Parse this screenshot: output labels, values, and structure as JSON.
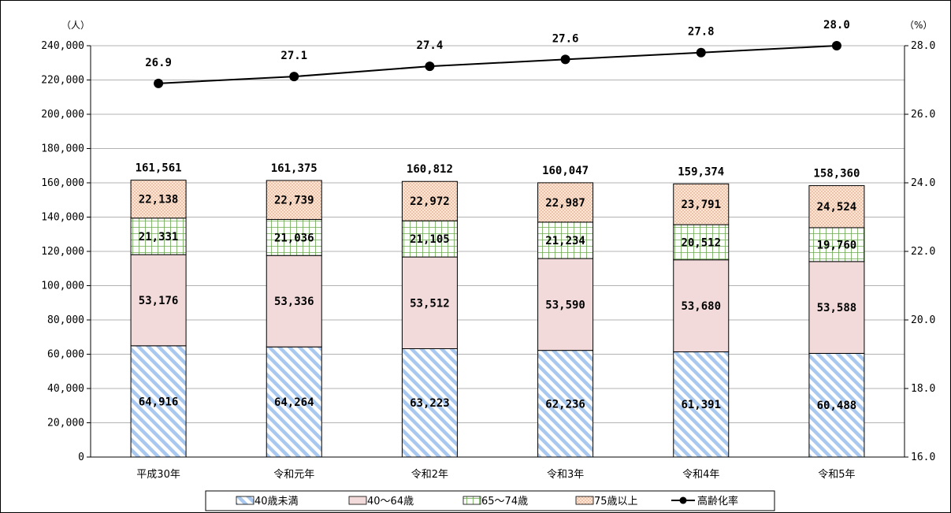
{
  "chart_data": {
    "type": "bar",
    "stacked": true,
    "categories": [
      "平成30年",
      "令和元年",
      "令和2年",
      "令和3年",
      "令和4年",
      "令和5年"
    ],
    "series": [
      {
        "name": "40歳未満",
        "values": [
          64916,
          64264,
          63223,
          62236,
          61391,
          60488
        ],
        "labels": [
          "64,916",
          "64,264",
          "63,223",
          "62,236",
          "61,391",
          "60,488"
        ],
        "pattern": "diagonal-stripes",
        "color": "#a9c8ef"
      },
      {
        "name": "40～64歳",
        "values": [
          53176,
          53336,
          53512,
          53590,
          53680,
          53588
        ],
        "labels": [
          "53,176",
          "53,336",
          "53,512",
          "53,590",
          "53,680",
          "53,588"
        ],
        "pattern": "solid",
        "color": "#f3dada"
      },
      {
        "name": "65～74歳",
        "values": [
          21331,
          21036,
          21105,
          21234,
          20512,
          19760
        ],
        "labels": [
          "21,331",
          "21,036",
          "21,105",
          "21,234",
          "20,512",
          "19,760"
        ],
        "pattern": "grid",
        "color": "#7fb35b"
      },
      {
        "name": "75歳以上",
        "values": [
          22138,
          22739,
          22972,
          22987,
          23791,
          24524
        ],
        "labels": [
          "22,138",
          "22,739",
          "22,972",
          "22,987",
          "23,791",
          "24,524"
        ],
        "pattern": "dots",
        "color": "#f2c8a8"
      }
    ],
    "totals": [
      161561,
      161375,
      160812,
      160047,
      159374,
      158360
    ],
    "total_labels": [
      "161,561",
      "161,375",
      "160,812",
      "160,047",
      "159,374",
      "158,360"
    ],
    "line": {
      "name": "高齢化率",
      "values": [
        26.9,
        27.1,
        27.4,
        27.6,
        27.8,
        28.0
      ],
      "labels": [
        "26.9",
        "27.1",
        "27.4",
        "27.6",
        "27.8",
        "28.0"
      ],
      "color": "#000000"
    },
    "y_left": {
      "unit": "（人）",
      "ylim": [
        0,
        240000
      ],
      "ticks": [
        0,
        20000,
        40000,
        60000,
        80000,
        100000,
        120000,
        140000,
        160000,
        180000,
        200000,
        220000,
        240000
      ],
      "tick_labels": [
        "0",
        "20,000",
        "40,000",
        "60,000",
        "80,000",
        "100,000",
        "120,000",
        "140,000",
        "160,000",
        "180,000",
        "200,000",
        "220,000",
        "240,000"
      ]
    },
    "y_right": {
      "unit": "（%）",
      "ylim": [
        16.0,
        28.0
      ],
      "ticks": [
        16.0,
        18.0,
        20.0,
        22.0,
        24.0,
        26.0,
        28.0
      ],
      "tick_labels": [
        "16.0",
        "18.0",
        "20.0",
        "22.0",
        "24.0",
        "26.0",
        "28.0"
      ]
    },
    "grid": true,
    "legend_position": "bottom"
  }
}
